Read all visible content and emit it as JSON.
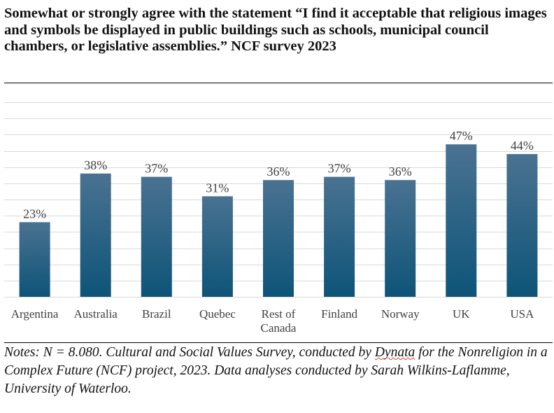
{
  "chart_data": {
    "type": "bar",
    "title": "Somewhat or strongly agree with the statement “I find it acceptable that religious images and symbols be displayed in public buildings such as schools, municipal council chambers, or legislative assemblies.” NCF survey 2023",
    "categories": [
      "Argentina",
      "Australia",
      "Brazil",
      "Quebec",
      "Rest of Canada",
      "Finland",
      "Norway",
      "UK",
      "USA"
    ],
    "category_lines": [
      [
        "Argentina"
      ],
      [
        "Australia"
      ],
      [
        "Brazil"
      ],
      [
        "Quebec"
      ],
      [
        "Rest of",
        "Canada"
      ],
      [
        "Finland"
      ],
      [
        "Norway"
      ],
      [
        "UK"
      ],
      [
        "USA"
      ]
    ],
    "values": [
      23,
      38,
      37,
      31,
      36,
      37,
      36,
      47,
      44
    ],
    "data_labels": [
      "23%",
      "38%",
      "37%",
      "31%",
      "36%",
      "37%",
      "36%",
      "47%",
      "44%"
    ],
    "xlabel": "",
    "ylabel": "",
    "ylim": [
      0,
      60
    ],
    "grid_step": 5,
    "grid": true,
    "legend": "none",
    "colors": {
      "bar_top": "#4a7291",
      "bar_bottom": "#0d5478",
      "grid": "#d9d9d9",
      "text": "#404040"
    }
  },
  "notes": {
    "before": "Notes: N = 8.080. Cultural and Social Values Survey, conducted by ",
    "flagged": "Dynata",
    "after": " for the Nonreligion in a Complex Future (NCF) project, 2023. Data analyses conducted by Sarah Wilkins-Laflamme, University of Waterloo."
  }
}
